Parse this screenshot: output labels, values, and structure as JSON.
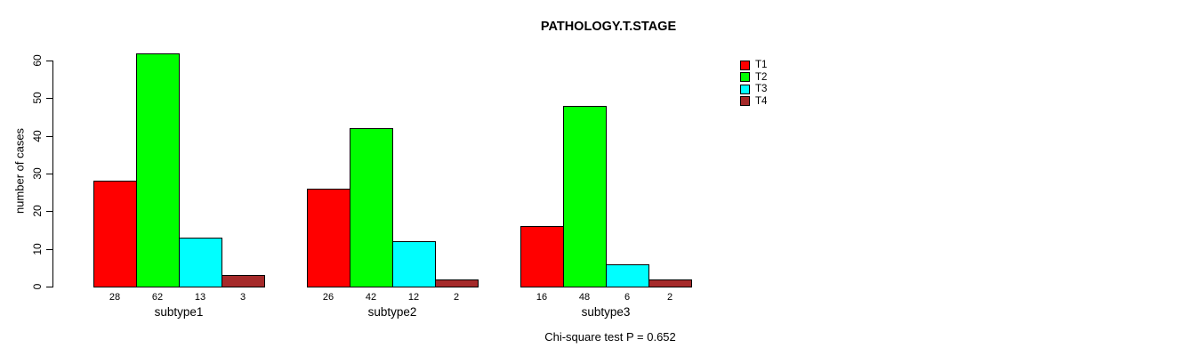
{
  "chart_data": {
    "type": "bar",
    "title": "PATHOLOGY.T.STAGE",
    "xlabel": "",
    "ylabel": "number of cases",
    "categories": [
      "subtype1",
      "subtype2",
      "subtype3"
    ],
    "series": [
      {
        "name": "T1",
        "color": "#FF0000",
        "values": [
          28,
          26,
          16
        ]
      },
      {
        "name": "T2",
        "color": "#00FF00",
        "values": [
          62,
          42,
          48
        ]
      },
      {
        "name": "T3",
        "color": "#00FFFF",
        "values": [
          13,
          12,
          6
        ]
      },
      {
        "name": "T4",
        "color": "#A52A2A",
        "values": [
          3,
          2,
          2
        ]
      }
    ],
    "yticks": [
      0,
      10,
      20,
      30,
      40,
      50,
      60
    ],
    "ylim": [
      0,
      62
    ],
    "grid": false,
    "bar_value_labels_shown": true,
    "legend_position": "top-right",
    "legend_entries": [
      "T1",
      "T2",
      "T3",
      "T4"
    ],
    "annotation": "Chi-square test P = 0.652",
    "axis_color": "#000000",
    "background_color": "#FFFFFF"
  }
}
